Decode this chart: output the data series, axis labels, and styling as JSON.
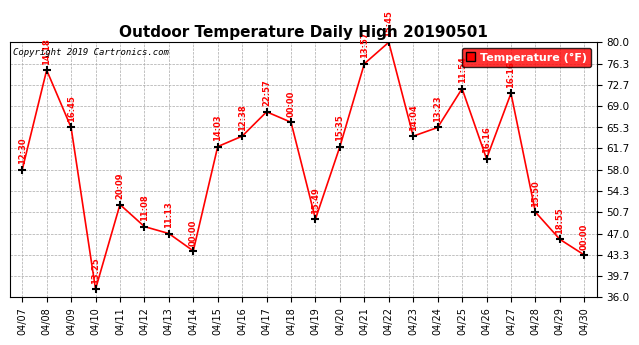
{
  "title": "Outdoor Temperature Daily High 20190501",
  "copyright": "Copyright 2019 Cartronics.com",
  "legend_label": "Temperature (°F)",
  "dates": [
    "04/07",
    "04/08",
    "04/09",
    "04/10",
    "04/11",
    "04/12",
    "04/13",
    "04/14",
    "04/15",
    "04/16",
    "04/17",
    "04/18",
    "04/19",
    "04/20",
    "04/21",
    "04/22",
    "04/23",
    "04/24",
    "04/25",
    "04/26",
    "04/27",
    "04/28",
    "04/29",
    "04/30"
  ],
  "temps": [
    58.0,
    75.2,
    65.3,
    37.4,
    52.0,
    48.2,
    47.0,
    44.0,
    62.0,
    63.8,
    68.0,
    66.2,
    49.5,
    62.0,
    76.3,
    80.0,
    63.8,
    65.3,
    72.0,
    59.9,
    71.2,
    50.7,
    46.0,
    43.3
  ],
  "time_labels": [
    "12:30",
    "14:18",
    "16:45",
    "13:25",
    "20:09",
    "11:08",
    "11:13",
    "00:00",
    "14:03",
    "12:38",
    "22:57",
    "00:00",
    "15:49",
    "15:35",
    "13:57",
    "15:45",
    "14:04",
    "13:23",
    "11:54",
    "16:16",
    "16:16",
    "15:50",
    "18:55",
    "00:00"
  ],
  "ylim": [
    36.0,
    80.0
  ],
  "yticks": [
    36.0,
    39.7,
    43.3,
    47.0,
    50.7,
    54.3,
    58.0,
    61.7,
    65.3,
    69.0,
    72.7,
    76.3,
    80.0
  ],
  "line_color": "#ff0000",
  "marker_color": "#000000",
  "label_color": "#ff0000",
  "background_color": "#ffffff",
  "grid_color": "#aaaaaa",
  "title_fontsize": 11,
  "legend_bg": "#ff0000",
  "legend_fg": "#ffffff"
}
